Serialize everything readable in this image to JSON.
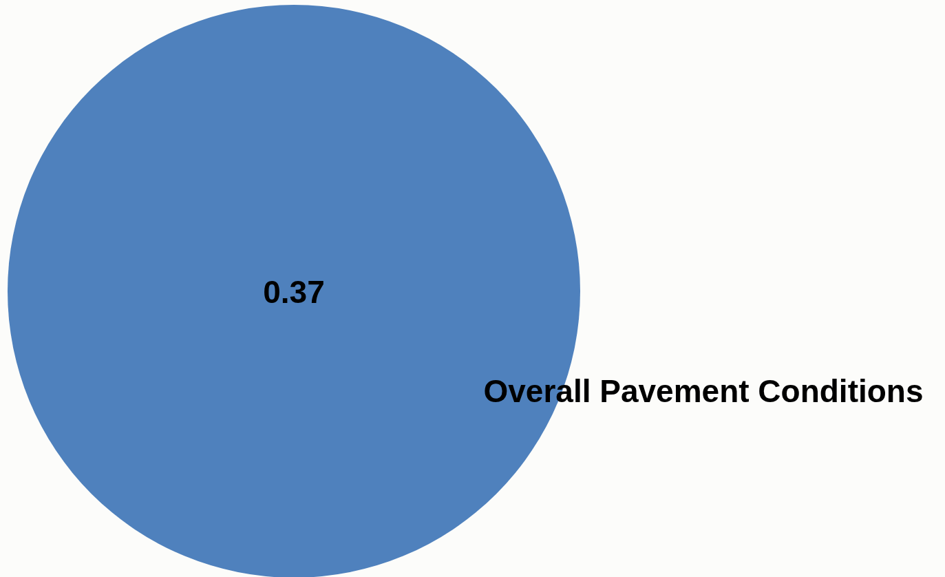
{
  "chart_data": {
    "type": "pie",
    "categories": [
      "Overall Pavement Conditions"
    ],
    "values": [
      0.37
    ],
    "colors": [
      "#4f81bd"
    ],
    "data_labels": true
  }
}
